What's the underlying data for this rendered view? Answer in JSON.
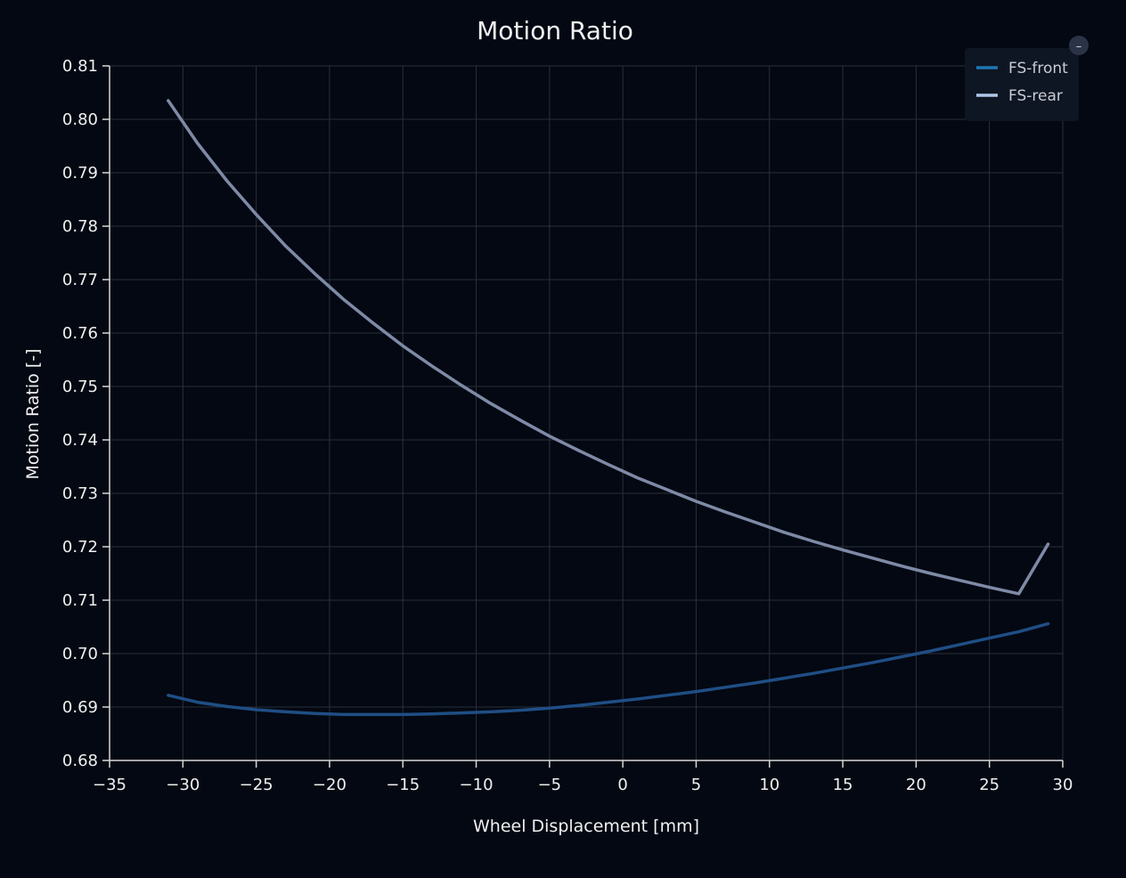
{
  "chart_data": {
    "type": "line",
    "title": "Motion Ratio",
    "xlabel": "Wheel Displacement [mm]",
    "ylabel": "Motion Ratio [-]",
    "xlim": [
      -35,
      30
    ],
    "ylim": [
      0.68,
      0.81
    ],
    "x_ticks": [
      -35,
      -30,
      -25,
      -20,
      -15,
      -10,
      -5,
      0,
      5,
      10,
      15,
      20,
      25,
      30
    ],
    "x_tick_labels": [
      "−35",
      "−30",
      "−25",
      "−20",
      "−15",
      "−10",
      "−5",
      "0",
      "5",
      "10",
      "15",
      "20",
      "25",
      "30"
    ],
    "y_ticks": [
      0.68,
      0.69,
      0.7,
      0.71,
      0.72,
      0.73,
      0.74,
      0.75,
      0.76,
      0.77,
      0.78,
      0.79,
      0.8,
      0.81
    ],
    "y_tick_labels": [
      "0.68",
      "0.69",
      "0.70",
      "0.71",
      "0.72",
      "0.73",
      "0.74",
      "0.75",
      "0.76",
      "0.77",
      "0.78",
      "0.79",
      "0.80",
      "0.81"
    ],
    "grid": true,
    "legend_position": "top-right",
    "legend_toggle_label": "–",
    "series": [
      {
        "name": "FS-front",
        "color": "#1f4e85",
        "legend_color": "#1f77b4",
        "x": [
          -31,
          -29,
          -27,
          -25,
          -23,
          -21,
          -19,
          -17,
          -15,
          -13,
          -11,
          -9,
          -7,
          -5,
          -3,
          -1,
          1,
          3,
          5,
          7,
          9,
          11,
          13,
          15,
          17,
          19,
          21,
          23,
          25,
          27,
          29
        ],
        "y": [
          0.6922,
          0.6909,
          0.6901,
          0.6895,
          0.6891,
          0.6888,
          0.6886,
          0.6886,
          0.6886,
          0.6887,
          0.6889,
          0.6891,
          0.6894,
          0.6898,
          0.6903,
          0.6909,
          0.6915,
          0.6922,
          0.6929,
          0.6937,
          0.6945,
          0.6954,
          0.6963,
          0.6973,
          0.6983,
          0.6994,
          0.7005,
          0.7017,
          0.7029,
          0.7041,
          0.7056
        ]
      },
      {
        "name": "FS-rear",
        "color": "#7e8aa6",
        "legend_color": "#aec7e8",
        "x": [
          -31,
          -29,
          -27,
          -25,
          -23,
          -21,
          -19,
          -17,
          -15,
          -13,
          -11,
          -9,
          -7,
          -5,
          -3,
          -1,
          1,
          3,
          5,
          7,
          9,
          11,
          13,
          15,
          17,
          19,
          21,
          23,
          25,
          27,
          29
        ],
        "y": [
          0.8035,
          0.7955,
          0.7885,
          0.7822,
          0.7763,
          0.7711,
          0.7662,
          0.7618,
          0.7576,
          0.7538,
          0.7502,
          0.7468,
          0.7437,
          0.7407,
          0.738,
          0.7354,
          0.7329,
          0.7307,
          0.7285,
          0.7265,
          0.7246,
          0.7227,
          0.721,
          0.7194,
          0.7179,
          0.7164,
          0.715,
          0.7137,
          0.7124,
          0.7112,
          0.7205
        ]
      }
    ]
  }
}
